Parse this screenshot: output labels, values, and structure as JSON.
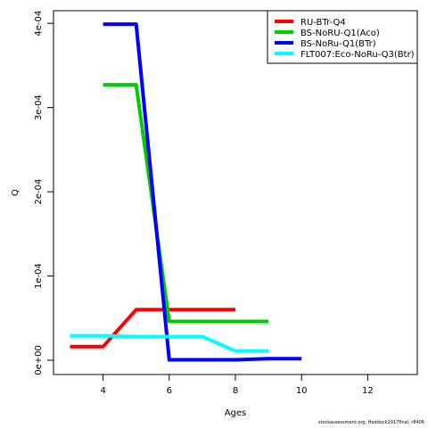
{
  "chart_data": {
    "type": "line",
    "xlabel": "Ages",
    "ylabel": "Q",
    "xlim": [
      2.5,
      13.5
    ],
    "ylim": [
      -1.7e-05,
      0.000415
    ],
    "x_ticks": [
      4,
      6,
      8,
      10,
      12
    ],
    "x_tick_labels": [
      "4",
      "6",
      "8",
      "10",
      "12"
    ],
    "y_ticks": [
      0,
      0.0001,
      0.0002,
      0.0003,
      0.0004
    ],
    "y_tick_labels": [
      "0e+00",
      "1e-04",
      "2e-04",
      "3e-04",
      "4e-04"
    ],
    "grid": false,
    "legend_position": "top-right",
    "series": [
      {
        "name": "RU-BTr-Q4",
        "color": "#ff0000",
        "x": [
          3,
          4,
          5,
          6,
          7,
          8
        ],
        "y": [
          1.6e-05,
          1.6e-05,
          6e-05,
          6e-05,
          6e-05,
          6e-05
        ]
      },
      {
        "name": "BS-NoRU-Q1(Aco)",
        "color": "#00cd00",
        "x": [
          4,
          5,
          6,
          7,
          8,
          9
        ],
        "y": [
          0.000327,
          0.000327,
          4.6e-05,
          4.6e-05,
          4.6e-05,
          4.6e-05
        ]
      },
      {
        "name": "BS-NoRu-Q1(BTr)",
        "color": "#0000ff",
        "x": [
          4,
          5,
          6,
          7,
          8,
          9,
          10
        ],
        "y": [
          0.000399,
          0.000399,
          5e-07,
          5e-07,
          5e-07,
          1.7e-06,
          1.7e-06
        ]
      },
      {
        "name": "FLT007:Eco-NoRu-Q3(Btr)",
        "color": "#00ffff",
        "x": [
          3,
          4,
          5,
          6,
          7,
          8,
          9
        ],
        "y": [
          2.9e-05,
          2.9e-05,
          2.8e-05,
          2.8e-05,
          2.8e-05,
          1.1e-05,
          1.1e-05
        ]
      }
    ]
  },
  "footer": "stockassessment.org, Haddock2017final, r8406"
}
